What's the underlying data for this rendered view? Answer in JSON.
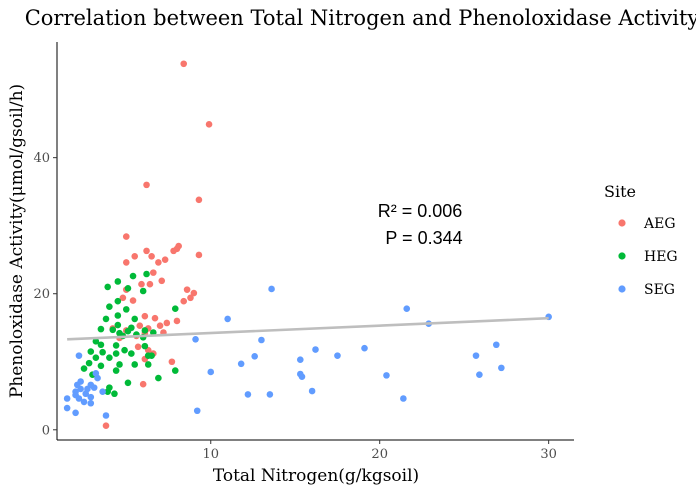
{
  "chart_data": {
    "type": "scatter",
    "title": "Correlation between Total Nitrogen and Phenoloxidase Activity",
    "xlabel": "Total Nitrogen(g/kgsoil)",
    "ylabel": "Phenoloxidase Activity(μmol/gsoil/h)",
    "xlim": [
      0.9,
      31.5
    ],
    "ylim": [
      -1.5,
      57
    ],
    "xticks": [
      10,
      20,
      30
    ],
    "yticks": [
      0,
      20,
      40
    ],
    "grid": false,
    "legend": {
      "title": "Site",
      "position": "right",
      "entries": [
        "AEG",
        "HEG",
        "SEG"
      ]
    },
    "annotation": {
      "r2": "R² = 0.006",
      "p": "P = 0.344"
    },
    "trendline": {
      "x": [
        1.5,
        30
      ],
      "y": [
        13.3,
        16.4
      ],
      "color": "#BEBEBE"
    },
    "series": [
      {
        "name": "AEG",
        "color": "#F8766D",
        "points": [
          [
            8.4,
            53.8
          ],
          [
            9.9,
            44.9
          ],
          [
            6.2,
            36.0
          ],
          [
            9.3,
            33.8
          ],
          [
            5.0,
            28.4
          ],
          [
            6.2,
            26.3
          ],
          [
            7.8,
            26.3
          ],
          [
            8.1,
            27.0
          ],
          [
            8.0,
            26.6
          ],
          [
            5.5,
            25.5
          ],
          [
            6.5,
            25.5
          ],
          [
            9.3,
            25.7
          ],
          [
            7.3,
            25.0
          ],
          [
            5.0,
            24.6
          ],
          [
            6.9,
            24.6
          ],
          [
            6.6,
            23.1
          ],
          [
            7.1,
            21.9
          ],
          [
            6.4,
            21.4
          ],
          [
            5.9,
            21.4
          ],
          [
            5.0,
            20.6
          ],
          [
            8.6,
            20.6
          ],
          [
            9.0,
            20.1
          ],
          [
            4.8,
            19.4
          ],
          [
            8.8,
            19.4
          ],
          [
            5.4,
            19.0
          ],
          [
            8.4,
            18.9
          ],
          [
            6.7,
            16.4
          ],
          [
            6.1,
            16.7
          ],
          [
            8.0,
            16.0
          ],
          [
            7.4,
            15.7
          ],
          [
            5.8,
            15.3
          ],
          [
            7.0,
            15.3
          ],
          [
            4.2,
            14.9
          ],
          [
            6.3,
            14.9
          ],
          [
            5.0,
            14.6
          ],
          [
            7.2,
            14.3
          ],
          [
            6.1,
            14.2
          ],
          [
            5.6,
            13.8
          ],
          [
            4.6,
            13.5
          ],
          [
            5.7,
            12.2
          ],
          [
            6.3,
            11.7
          ],
          [
            6.6,
            11.2
          ],
          [
            6.1,
            10.4
          ],
          [
            7.7,
            10.0
          ],
          [
            6.0,
            6.7
          ],
          [
            3.8,
            0.6
          ]
        ]
      },
      {
        "name": "HEG",
        "color": "#00BA38",
        "points": [
          [
            6.2,
            22.9
          ],
          [
            5.4,
            22.6
          ],
          [
            4.5,
            21.8
          ],
          [
            3.9,
            21.0
          ],
          [
            5.1,
            20.8
          ],
          [
            6.0,
            20.4
          ],
          [
            4.5,
            18.9
          ],
          [
            4.0,
            18.1
          ],
          [
            7.9,
            17.8
          ],
          [
            5.0,
            17.7
          ],
          [
            4.5,
            16.8
          ],
          [
            5.5,
            16.3
          ],
          [
            3.8,
            16.3
          ],
          [
            4.5,
            15.4
          ],
          [
            3.5,
            14.8
          ],
          [
            4.2,
            14.7
          ],
          [
            5.3,
            15.0
          ],
          [
            6.1,
            14.6
          ],
          [
            5.1,
            14.5
          ],
          [
            4.6,
            14.2
          ],
          [
            6.6,
            14.3
          ],
          [
            5.6,
            14.0
          ],
          [
            4.8,
            13.8
          ],
          [
            6.0,
            13.6
          ],
          [
            3.2,
            13.0
          ],
          [
            3.5,
            12.5
          ],
          [
            4.4,
            12.4
          ],
          [
            6.1,
            12.3
          ],
          [
            4.9,
            11.7
          ],
          [
            2.9,
            11.5
          ],
          [
            3.6,
            11.4
          ],
          [
            4.4,
            11.2
          ],
          [
            5.3,
            11.2
          ],
          [
            6.5,
            10.9
          ],
          [
            6.3,
            10.9
          ],
          [
            3.2,
            10.6
          ],
          [
            4.0,
            10.6
          ],
          [
            2.8,
            9.8
          ],
          [
            4.6,
            9.6
          ],
          [
            6.3,
            9.6
          ],
          [
            5.5,
            9.6
          ],
          [
            3.5,
            9.4
          ],
          [
            2.5,
            9.0
          ],
          [
            4.4,
            8.7
          ],
          [
            3.0,
            8.1
          ],
          [
            7.9,
            8.7
          ],
          [
            6.9,
            7.6
          ],
          [
            5.1,
            6.9
          ],
          [
            4.0,
            6.2
          ],
          [
            3.9,
            5.6
          ],
          [
            4.3,
            5.3
          ]
        ]
      },
      {
        "name": "SEG",
        "color": "#619CFF",
        "points": [
          [
            2.2,
            10.9
          ],
          [
            13.6,
            20.7
          ],
          [
            21.6,
            17.8
          ],
          [
            30.0,
            16.6
          ],
          [
            11.0,
            16.3
          ],
          [
            22.9,
            15.6
          ],
          [
            9.1,
            13.3
          ],
          [
            13.0,
            13.2
          ],
          [
            26.9,
            12.5
          ],
          [
            16.2,
            11.8
          ],
          [
            19.1,
            12.0
          ],
          [
            12.6,
            10.8
          ],
          [
            17.5,
            10.9
          ],
          [
            25.7,
            10.9
          ],
          [
            11.8,
            9.7
          ],
          [
            15.3,
            10.3
          ],
          [
            27.2,
            9.1
          ],
          [
            10.0,
            8.5
          ],
          [
            15.3,
            8.2
          ],
          [
            15.4,
            7.8
          ],
          [
            20.4,
            8.0
          ],
          [
            25.9,
            8.1
          ],
          [
            16.0,
            5.7
          ],
          [
            12.2,
            5.2
          ],
          [
            13.5,
            5.2
          ],
          [
            21.4,
            4.6
          ],
          [
            9.2,
            2.8
          ],
          [
            3.8,
            2.1
          ],
          [
            2.0,
            2.5
          ],
          [
            1.5,
            3.2
          ],
          [
            1.5,
            4.6
          ],
          [
            2.2,
            4.6
          ],
          [
            2.0,
            5.1
          ],
          [
            2.6,
            5.3
          ],
          [
            2.9,
            4.8
          ],
          [
            2.0,
            5.6
          ],
          [
            2.3,
            6.0
          ],
          [
            2.7,
            6.0
          ],
          [
            3.1,
            6.2
          ],
          [
            2.1,
            6.6
          ],
          [
            2.9,
            6.6
          ],
          [
            2.3,
            7.1
          ],
          [
            3.3,
            7.6
          ],
          [
            3.2,
            8.3
          ],
          [
            2.5,
            4.1
          ],
          [
            2.9,
            3.9
          ],
          [
            3.6,
            5.6
          ]
        ]
      }
    ]
  }
}
